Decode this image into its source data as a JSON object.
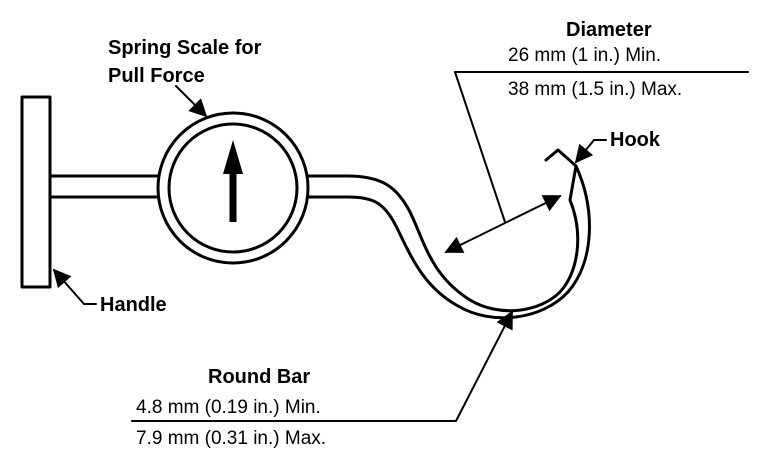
{
  "labels": {
    "spring_scale_line1": "Spring Scale for",
    "spring_scale_line2": "Pull Force",
    "diameter_title": "Diameter",
    "diameter_min": "26 mm (1 in.) Min.",
    "diameter_max": "38 mm (1.5 in.) Max.",
    "hook": "Hook",
    "handle": "Handle",
    "round_bar_title": "Round Bar",
    "round_bar_min": "4.8 mm (0.19 in.) Min.",
    "round_bar_max": "7.9 mm (0.31 in.) Max."
  },
  "colors": {
    "ink": "#000000",
    "background": "#ffffff"
  }
}
